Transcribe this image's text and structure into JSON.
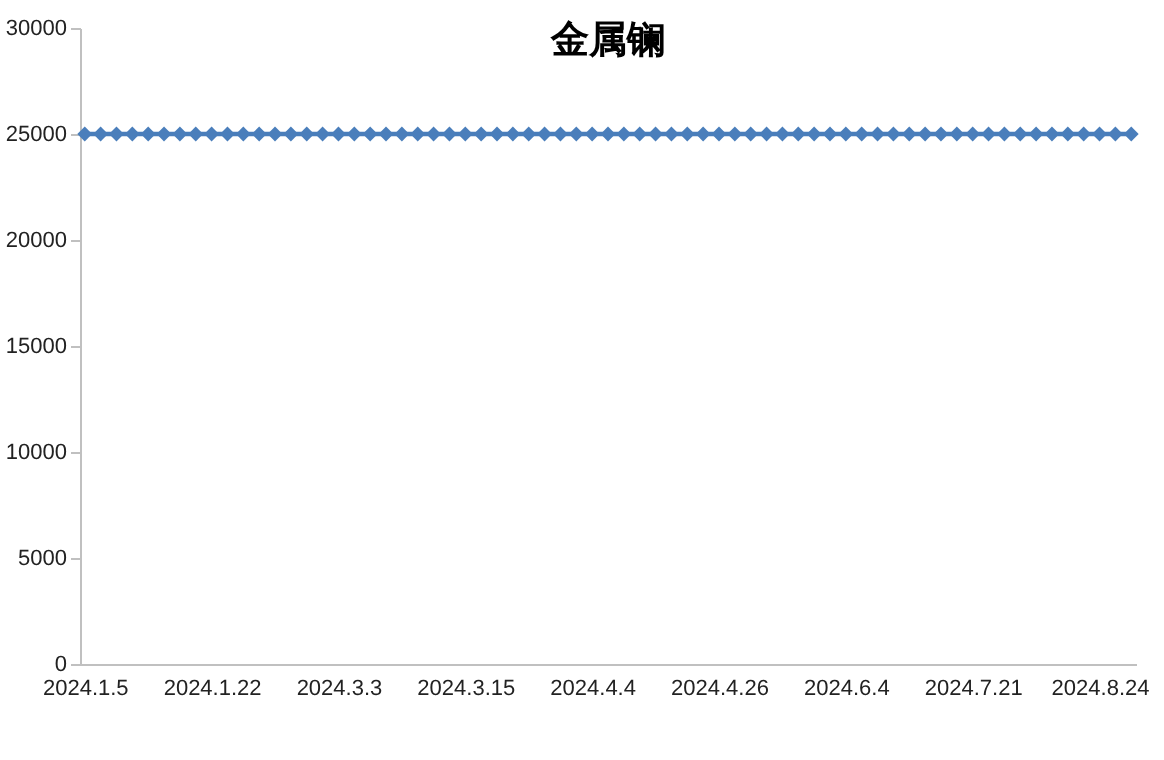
{
  "chart_data": {
    "type": "line",
    "title": "金属镧",
    "categories": [
      "2024.1.5",
      null,
      null,
      null,
      null,
      null,
      null,
      null,
      "2024.1.22",
      null,
      null,
      null,
      null,
      null,
      null,
      null,
      "2024.3.3",
      null,
      null,
      null,
      null,
      null,
      null,
      null,
      "2024.3.15",
      null,
      null,
      null,
      null,
      null,
      null,
      null,
      "2024.4.4",
      null,
      null,
      null,
      null,
      null,
      null,
      null,
      "2024.4.26",
      null,
      null,
      null,
      null,
      null,
      null,
      null,
      "2024.6.4",
      null,
      null,
      null,
      null,
      null,
      null,
      null,
      "2024.7.21",
      null,
      null,
      null,
      null,
      null,
      null,
      null,
      "2024.8.24",
      null,
      null
    ],
    "series": [
      {
        "color": "#4a7ebb",
        "values": [
          25000,
          25000,
          25000,
          25000,
          25000,
          25000,
          25000,
          25000,
          25000,
          25000,
          25000,
          25000,
          25000,
          25000,
          25000,
          25000,
          25000,
          25000,
          25000,
          25000,
          25000,
          25000,
          25000,
          25000,
          25000,
          25000,
          25000,
          25000,
          25000,
          25000,
          25000,
          25000,
          25000,
          25000,
          25000,
          25000,
          25000,
          25000,
          25000,
          25000,
          25000,
          25000,
          25000,
          25000,
          25000,
          25000,
          25000,
          25000,
          25000,
          25000,
          25000,
          25000,
          25000,
          25000,
          25000,
          25000,
          25000,
          25000,
          25000,
          25000,
          25000,
          25000,
          25000,
          25000,
          25000,
          25000,
          25000
        ]
      }
    ],
    "ylim": [
      0,
      30000
    ],
    "yticks": [
      0,
      5000,
      10000,
      15000,
      20000,
      25000,
      30000
    ],
    "grid": false,
    "legend": false,
    "marker": "diamond",
    "line_style": "solid"
  }
}
